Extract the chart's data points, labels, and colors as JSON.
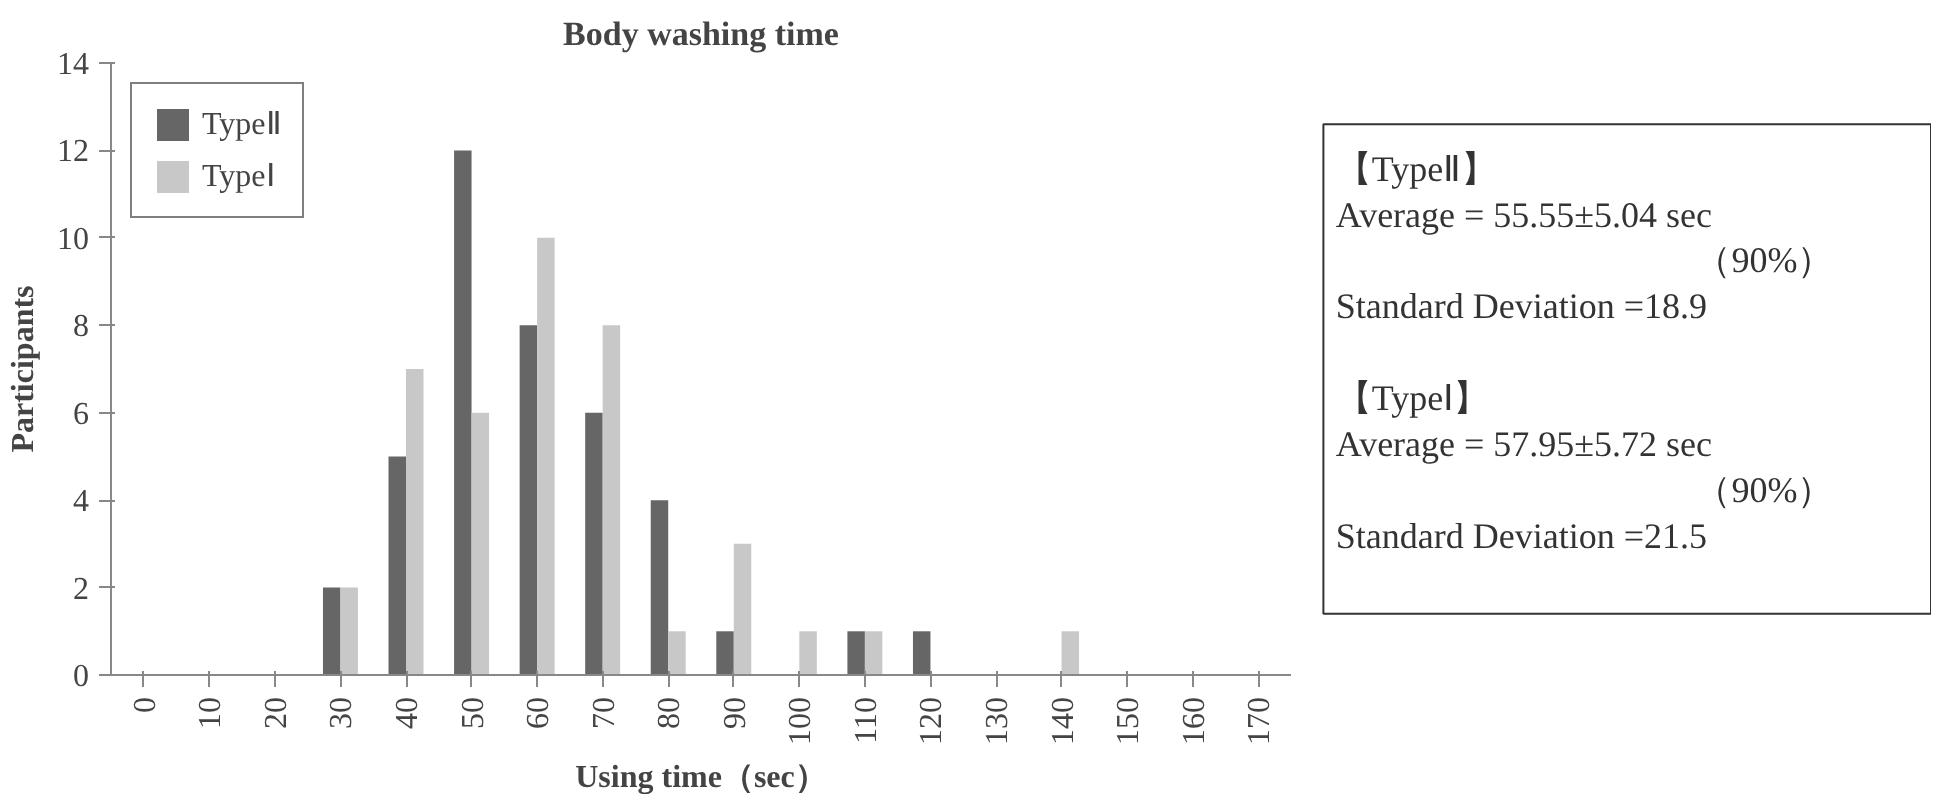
{
  "chart_data": {
    "type": "bar",
    "title": "Body washing time",
    "xlabel": "Using time（sec）",
    "ylabel": "Participants",
    "categories": [
      "0",
      "10",
      "20",
      "30",
      "40",
      "50",
      "60",
      "70",
      "80",
      "90",
      "100",
      "110",
      "120",
      "130",
      "140",
      "150",
      "160",
      "170"
    ],
    "series": [
      {
        "name": "TypeⅡ",
        "color": "#666666",
        "values": [
          0,
          0,
          0,
          2,
          5,
          12,
          8,
          6,
          4,
          1,
          0,
          1,
          1,
          0,
          0,
          0,
          0,
          0
        ]
      },
      {
        "name": "TypeⅠ",
        "color": "#c8c8c8",
        "values": [
          0,
          0,
          0,
          2,
          7,
          6,
          10,
          8,
          1,
          3,
          1,
          1,
          0,
          0,
          1,
          0,
          0,
          0
        ]
      }
    ],
    "ylim": [
      0,
      14
    ],
    "yticks": [
      0,
      2,
      4,
      6,
      8,
      10,
      12,
      14
    ],
    "grid": false,
    "legend": "top left",
    "annotations": [
      "【TypeⅡ】",
      "Average = 55.55±5.04 sec",
      "（90%）",
      "Standard Deviation =18.9",
      "【TypeⅠ】",
      "Average = 57.95±5.72 sec",
      "（90%）",
      "Standard Deviation =21.5"
    ]
  }
}
